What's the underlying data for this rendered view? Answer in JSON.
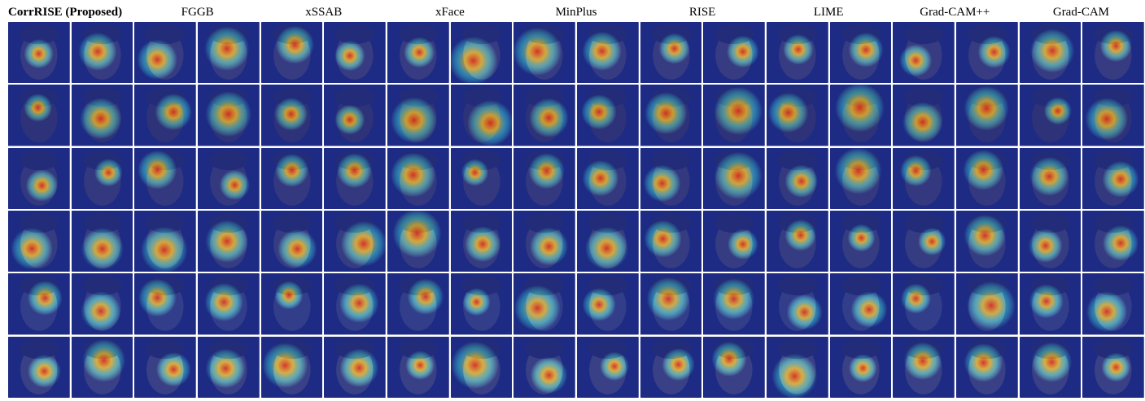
{
  "methods": [
    {
      "label": "CorrRISE (Proposed)",
      "bold": true
    },
    {
      "label": "FGGB",
      "bold": false
    },
    {
      "label": "xSSAB",
      "bold": false
    },
    {
      "label": "xFace",
      "bold": false
    },
    {
      "label": "MinPlus",
      "bold": false
    },
    {
      "label": "RISE",
      "bold": false
    },
    {
      "label": "LIME",
      "bold": false
    },
    {
      "label": "Grad-CAM++",
      "bold": false
    },
    {
      "label": "Grad-CAM",
      "bold": false
    }
  ],
  "grid": {
    "rows": 6,
    "pairs_per_row": 9,
    "images_per_pair": 2
  },
  "colors": {
    "text": "#000000",
    "background": "#ffffff",
    "heatmap_low": "#1a2a8c",
    "heatmap_mid": "#33c6e8",
    "heatmap_high": "#e0281c"
  }
}
